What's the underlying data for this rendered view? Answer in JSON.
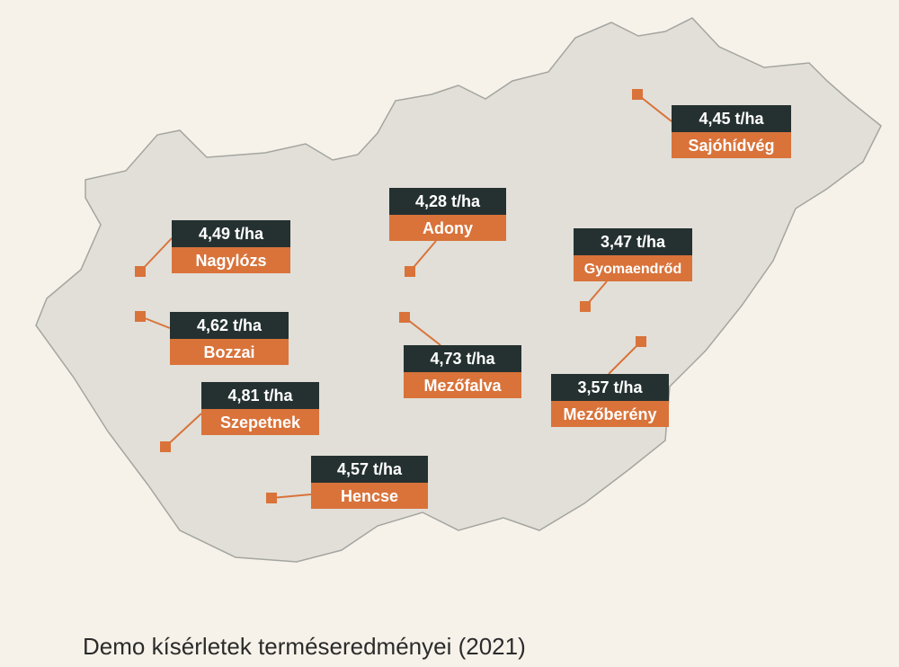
{
  "locations": [
    {
      "yield": "4,45 t/ha",
      "name": "Sajóhídvég"
    },
    {
      "yield": "4,28 t/ha",
      "name": "Adony"
    },
    {
      "yield": "4,49 t/ha",
      "name": "Nagylózs"
    },
    {
      "yield": "3,47 t/ha",
      "name": "Gyomaendrőd"
    },
    {
      "yield": "4,62 t/ha",
      "name": "Bozzai"
    },
    {
      "yield": "4,73 t/ha",
      "name": "Mezőfalva"
    },
    {
      "yield": "3,57 t/ha",
      "name": "Mezőberény"
    },
    {
      "yield": "4,81 t/ha",
      "name": "Szepetnek"
    },
    {
      "yield": "4,57 t/ha",
      "name": "Hencse"
    }
  ],
  "caption": "Demo kísérletek terméseredményei (2021)"
}
